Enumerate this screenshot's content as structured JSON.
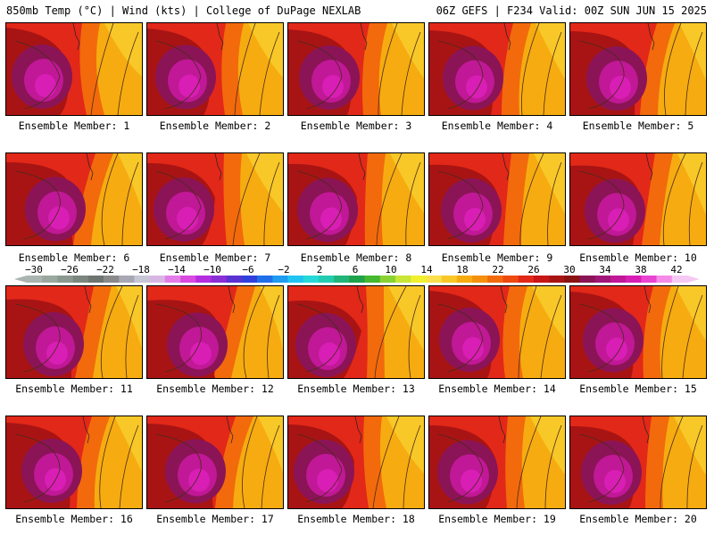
{
  "header": {
    "left_title": "850mb Temp (°C) | Wind (kts) | College of DuPage NEXLAB",
    "right_title": "06Z GEFS | F234 Valid: 00Z SUN JUN 15 2025"
  },
  "members": [
    {
      "label": "Ensemble Member: 1"
    },
    {
      "label": "Ensemble Member: 2"
    },
    {
      "label": "Ensemble Member: 3"
    },
    {
      "label": "Ensemble Member: 4"
    },
    {
      "label": "Ensemble Member: 5"
    },
    {
      "label": "Ensemble Member: 6"
    },
    {
      "label": "Ensemble Member: 7"
    },
    {
      "label": "Ensemble Member: 8"
    },
    {
      "label": "Ensemble Member: 9"
    },
    {
      "label": "Ensemble Member: 10"
    },
    {
      "label": "Ensemble Member: 11"
    },
    {
      "label": "Ensemble Member: 12"
    },
    {
      "label": "Ensemble Member: 13"
    },
    {
      "label": "Ensemble Member: 14"
    },
    {
      "label": "Ensemble Member: 15"
    },
    {
      "label": "Ensemble Member: 16"
    },
    {
      "label": "Ensemble Member: 17"
    },
    {
      "label": "Ensemble Member: 18"
    },
    {
      "label": "Ensemble Member: 19"
    },
    {
      "label": "Ensemble Member: 20"
    }
  ],
  "legend": {
    "ticks": [
      "−30",
      "−26",
      "−22",
      "−18",
      "−14",
      "−10",
      "−6",
      "−2",
      "2",
      "6",
      "10",
      "14",
      "18",
      "22",
      "26",
      "30",
      "34",
      "38",
      "42"
    ],
    "colors": [
      "#aab4b0",
      "#9aa8a0",
      "#8a9890",
      "#7c8680",
      "#6e7570",
      "#8a8a8a",
      "#a8a8b4",
      "#c6c6d6",
      "#d8b6e4",
      "#e37de8",
      "#d84ae0",
      "#b42ee0",
      "#8a2ed6",
      "#5a32d2",
      "#3040dc",
      "#1f6fe8",
      "#1e9cf0",
      "#20c3f2",
      "#26d8d8",
      "#22ccae",
      "#22b478",
      "#1ea24a",
      "#46b830",
      "#8ad234",
      "#c8e636",
      "#f0f02e",
      "#fae04a",
      "#f8c828",
      "#f6ac10",
      "#f4900c",
      "#f26a0c",
      "#ee4a10",
      "#e22818",
      "#c81616",
      "#a81414",
      "#8a1212",
      "#8a1456",
      "#a01678",
      "#c01896",
      "#d81eb4",
      "#ea44d2",
      "#f68ae8",
      "#f6c8f4"
    ]
  }
}
